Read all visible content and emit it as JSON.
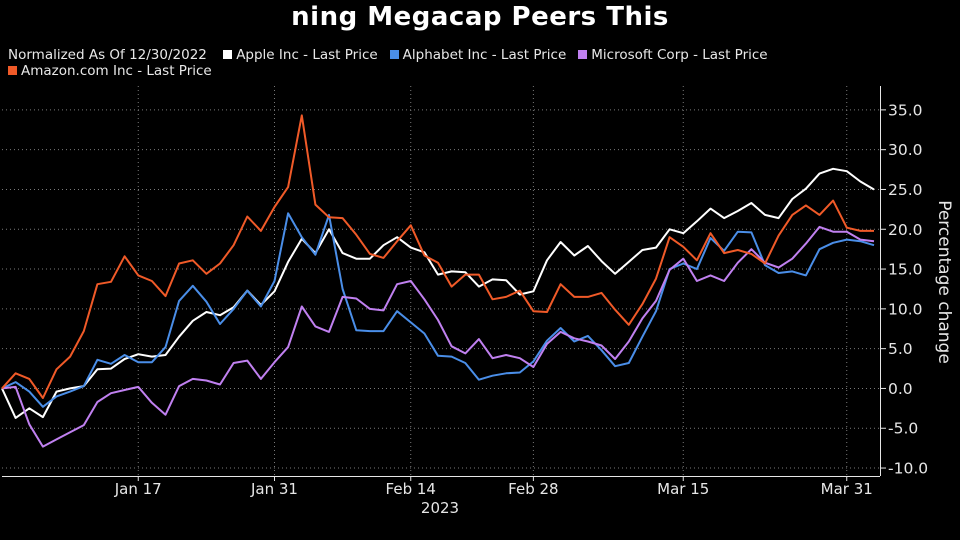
{
  "title": "ning Megacap Peers This",
  "legend": {
    "normalized_label": "Normalized As Of 12/30/2022",
    "items": [
      {
        "label": "Apple Inc - Last Price",
        "color": "#ffffff"
      },
      {
        "label": "Alphabet Inc - Last Price",
        "color": "#4a8ee8"
      },
      {
        "label": "Microsoft Corp - Last Price",
        "color": "#c080f0"
      },
      {
        "label": "Amazon.com Inc - Last Price",
        "color": "#f05a28"
      }
    ]
  },
  "chart_data": {
    "type": "line",
    "title": "ning Megacap Peers This",
    "ylabel": "Percentage change",
    "xlabel": "2023",
    "ylim": [
      -11,
      38
    ],
    "yticks": [
      -10,
      -5,
      0,
      5,
      10,
      15,
      20,
      25,
      30,
      35
    ],
    "ytick_labels": [
      "-10.0",
      "-5.0",
      "0.0",
      "5.0",
      "10.0",
      "15.0",
      "20.0",
      "25.0",
      "30.0",
      "35.0"
    ],
    "x_dates": [
      "2022-12-30",
      "2023-01-03",
      "2023-01-04",
      "2023-01-05",
      "2023-01-06",
      "2023-01-09",
      "2023-01-10",
      "2023-01-11",
      "2023-01-12",
      "2023-01-13",
      "2023-01-17",
      "2023-01-18",
      "2023-01-19",
      "2023-01-20",
      "2023-01-23",
      "2023-01-24",
      "2023-01-25",
      "2023-01-26",
      "2023-01-27",
      "2023-01-30",
      "2023-01-31",
      "2023-02-01",
      "2023-02-02",
      "2023-02-03",
      "2023-02-06",
      "2023-02-07",
      "2023-02-08",
      "2023-02-09",
      "2023-02-10",
      "2023-02-13",
      "2023-02-14",
      "2023-02-15",
      "2023-02-16",
      "2023-02-17",
      "2023-02-21",
      "2023-02-22",
      "2023-02-23",
      "2023-02-24",
      "2023-02-27",
      "2023-02-28",
      "2023-03-01",
      "2023-03-02",
      "2023-03-03",
      "2023-03-06",
      "2023-03-07",
      "2023-03-08",
      "2023-03-09",
      "2023-03-10",
      "2023-03-13",
      "2023-03-14",
      "2023-03-15",
      "2023-03-16",
      "2023-03-17",
      "2023-03-20",
      "2023-03-21",
      "2023-03-22",
      "2023-03-23",
      "2023-03-24",
      "2023-03-27",
      "2023-03-28",
      "2023-03-29",
      "2023-03-30",
      "2023-03-31",
      "2023-04-03",
      "2023-04-04"
    ],
    "x_ticks": [
      {
        "date": "2023-01-17",
        "label": "Jan 17"
      },
      {
        "date": "2023-01-31",
        "label": "Jan 31"
      },
      {
        "date": "2023-02-14",
        "label": "Feb 14"
      },
      {
        "date": "2023-02-28",
        "label": "Feb 28"
      },
      {
        "date": "2023-03-15",
        "label": "Mar 15"
      },
      {
        "date": "2023-03-31",
        "label": "Mar 31"
      }
    ],
    "series": [
      {
        "name": "Apple Inc - Last Price",
        "color": "#ffffff",
        "values": [
          0,
          -3.7,
          -2.5,
          -3.6,
          -0.4,
          0,
          0.3,
          2.4,
          2.5,
          3.7,
          4.3,
          4,
          4.2,
          6.5,
          8.5,
          9.6,
          9.2,
          10.2,
          12.3,
          10.5,
          12.2,
          15.9,
          18.8,
          17,
          20,
          17,
          16.3,
          16.3,
          18,
          19,
          17.7,
          17.1,
          14.3,
          14.7,
          14.6,
          12.8,
          13.7,
          13.6,
          11.8,
          12.2,
          16.1,
          18.4,
          16.7,
          17.9,
          16,
          14.4,
          15.9,
          17.4,
          17.7,
          20,
          19.5,
          21,
          22.6,
          21.4,
          22.3,
          23.3,
          21.8,
          21.4,
          23.8,
          25.1,
          27,
          27.6,
          27.3,
          26,
          25
        ]
      },
      {
        "name": "Alphabet Inc - Last Price",
        "color": "#4a8ee8",
        "values": [
          0,
          0.8,
          -0.4,
          -2.3,
          -1,
          -0.4,
          0.3,
          3.6,
          3.1,
          4.2,
          3.3,
          3.3,
          5.2,
          11,
          12.9,
          10.9,
          8.1,
          10,
          12.3,
          10.3,
          13.5,
          22,
          19,
          16.8,
          21.8,
          12.5,
          7.3,
          7.2,
          7.2,
          9.7,
          8.3,
          6.9,
          4.1,
          4,
          3.2,
          1.1,
          1.6,
          1.9,
          2,
          3.4,
          6,
          7.6,
          5.9,
          6.6,
          4.8,
          2.8,
          3.2,
          6.5,
          9.7,
          15,
          15.7,
          15,
          18.9,
          17.3,
          19.7,
          19.6,
          15.5,
          14.5,
          14.7,
          14.2,
          17.5,
          18.3,
          18.7,
          18.5,
          18
        ]
      },
      {
        "name": "Microsoft Corp - Last Price",
        "color": "#c080f0",
        "values": [
          0,
          0.2,
          -4.5,
          -7.3,
          -6.4,
          -5.5,
          -4.6,
          -1.7,
          -0.6,
          -0.2,
          0.2,
          -1.8,
          -3.3,
          0.3,
          1.2,
          1,
          0.5,
          3.2,
          3.5,
          1.2,
          3.3,
          5.2,
          10.3,
          7.8,
          7.1,
          11.5,
          11.3,
          10,
          9.8,
          13.1,
          13.5,
          11.2,
          8.6,
          5.3,
          4.4,
          6.2,
          3.8,
          4.2,
          3.8,
          2.7,
          5.6,
          7.1,
          6.3,
          5.9,
          5.4,
          3.7,
          5.9,
          8.8,
          11,
          14.9,
          16.3,
          13.5,
          14.2,
          13.5,
          15.8,
          17.5,
          15.8,
          15.2,
          16.3,
          18.2,
          20.3,
          19.7,
          19.7,
          18.7,
          18.5
        ]
      },
      {
        "name": "Amazon.com Inc - Last Price",
        "color": "#f05a28",
        "values": [
          0,
          1.9,
          1.2,
          -1.2,
          2.4,
          4,
          7.2,
          13.1,
          13.4,
          16.6,
          14.2,
          13.5,
          11.6,
          15.7,
          16.1,
          14.4,
          15.7,
          18,
          21.6,
          19.8,
          22.8,
          25.3,
          34.3,
          23.1,
          21.5,
          21.4,
          19.3,
          16.9,
          16.4,
          18.5,
          20.5,
          16.7,
          15.8,
          12.8,
          14.3,
          14.3,
          11.2,
          11.5,
          12.3,
          9.7,
          9.6,
          13.1,
          11.5,
          11.5,
          12,
          9.9,
          8,
          10.6,
          13.8,
          19,
          17.8,
          16.1,
          19.5,
          17,
          17.4,
          16.9,
          15.7,
          19.2,
          21.8,
          23,
          21.8,
          23.6,
          20.2,
          19.8,
          19.8
        ]
      }
    ]
  }
}
